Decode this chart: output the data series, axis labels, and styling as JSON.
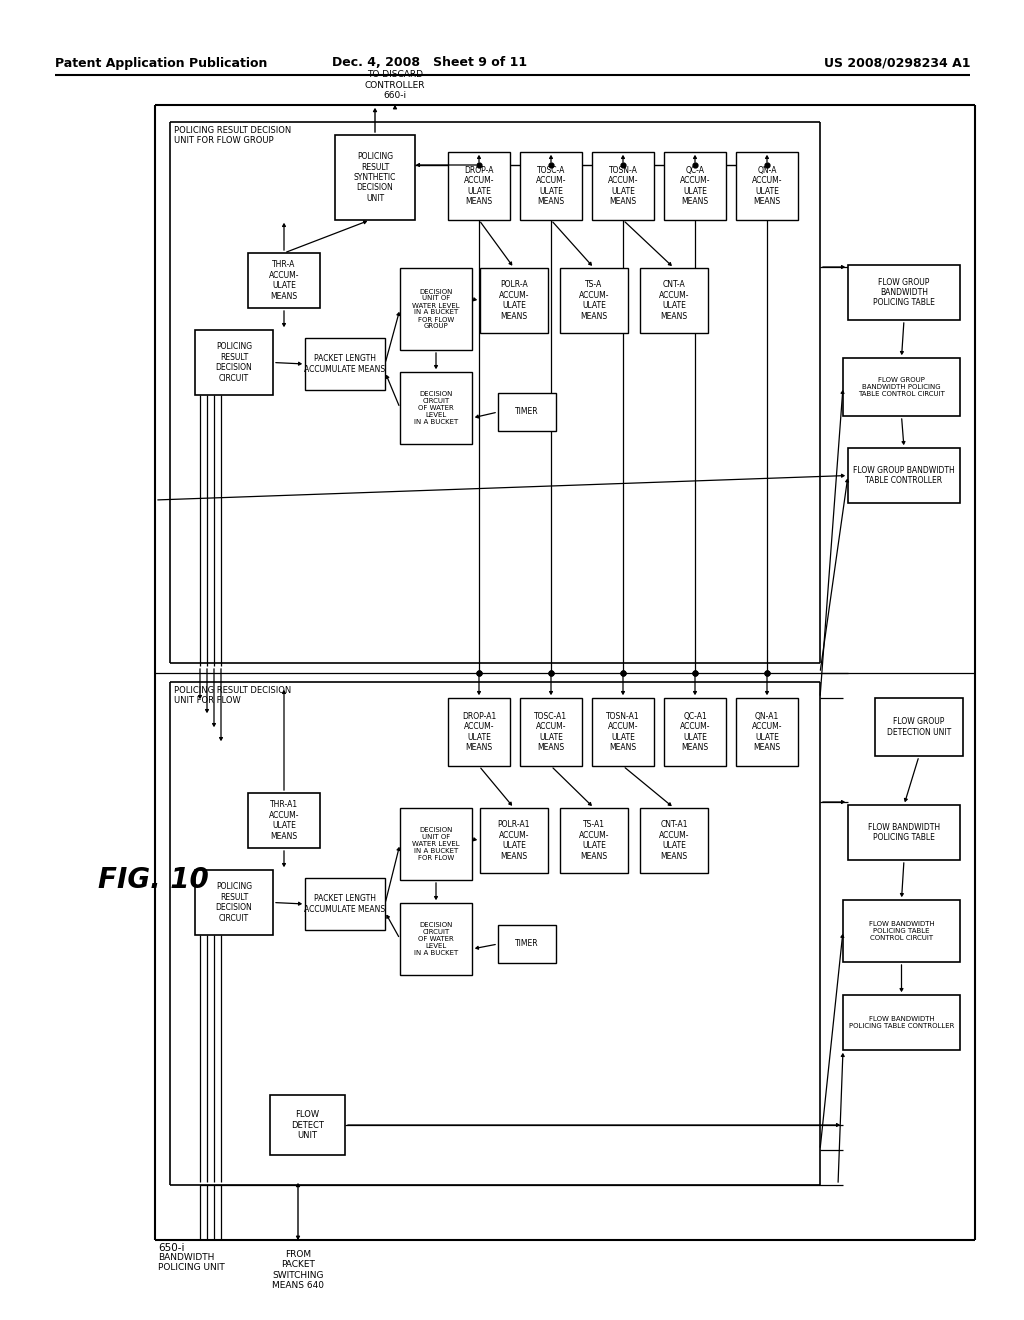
{
  "bg_color": "#ffffff",
  "header_left": "Patent Application Publication",
  "header_center": "Dec. 4, 2008   Sheet 9 of 11",
  "header_right": "US 2008/0298234 A1",
  "fig_label": "FIG. 10",
  "outer_label1": "650-i",
  "outer_label2": "BANDWIDTH\nPOLICING UNIT",
  "from_label": "FROM\nPACKET\nSWITCHING\nMEANS 640",
  "to_discard": "TO DISCARD\nCONTROLLER\n660-i"
}
